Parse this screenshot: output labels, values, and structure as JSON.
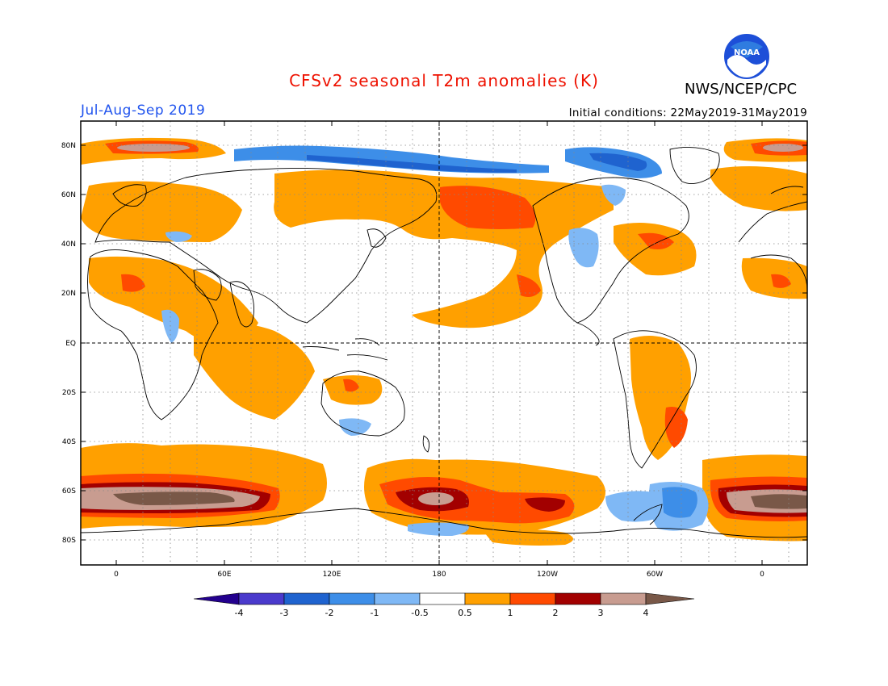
{
  "title": "CFSv2 seasonal T2m anomalies (K)",
  "season": "Jul-Aug-Sep 2019",
  "agency": "NWS/NCEP/CPC",
  "logo_text": "NOAA",
  "initial_conditions": "Initial conditions: 22May2019-31May2019",
  "colors": {
    "title": "#ee1100",
    "season": "#2255ee"
  },
  "lat_labels": [
    "80N",
    "60N",
    "40N",
    "20N",
    "EQ",
    "20S",
    "40S",
    "60S",
    "80S"
  ],
  "lon_labels": [
    "0",
    "60E",
    "120E",
    "180",
    "120W",
    "60W",
    "0"
  ],
  "colorbar": {
    "labels": [
      "-4",
      "-3",
      "-2",
      "-1",
      "-0.5",
      "0.5",
      "1",
      "2",
      "3",
      "4"
    ],
    "colors": [
      "#23008e",
      "#4a3acc",
      "#1f63cf",
      "#3d8ee8",
      "#7fb8f5",
      "#ffffff",
      "#ffa000",
      "#ff4a00",
      "#a20000",
      "#c89c90",
      "#795848"
    ]
  }
}
